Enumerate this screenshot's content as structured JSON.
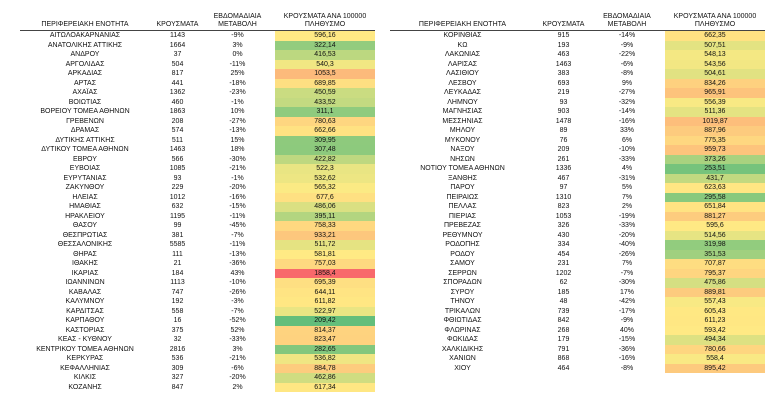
{
  "color_scale": [
    "#63be7b",
    "#ffeb84",
    "#f8696b"
  ],
  "tables": [
    {
      "headers": [
        "ΠΕΡΙΦΕΡΕΙΑΚΗ ΕΝΟΤΗΤΑ",
        "ΚΡΟΥΣΜΑΤΑ",
        "ΕΒΔΟΜΑΔΙΑΙΑ ΜΕΤΑΒΟΛΗ",
        "ΚΡΟΥΣΜΑΤΑ ΑΝΑ 100000 ΠΛΗΘΥΣΜΟ"
      ],
      "rows": [
        [
          "ΑΙΤΩΛΟΑΚΑΡΝΑΝΙΑΣ",
          "1143",
          "-9%",
          "596,16"
        ],
        [
          "ΑΝΑΤΟΛΙΚΗΣ ΑΤΤΙΚΗΣ",
          "1664",
          "3%",
          "322,14"
        ],
        [
          "ΑΝΔΡΟΥ",
          "37",
          "0%",
          "416,53"
        ],
        [
          "ΑΡΓΟΛΙΔΑΣ",
          "504",
          "-11%",
          "540,3"
        ],
        [
          "ΑΡΚΑΔΙΑΣ",
          "817",
          "25%",
          "1053,5"
        ],
        [
          "ΑΡΤΑΣ",
          "441",
          "-18%",
          "689,85"
        ],
        [
          "ΑΧΑΪΑΣ",
          "1362",
          "-23%",
          "450,59"
        ],
        [
          "ΒΟΙΩΤΙΑΣ",
          "460",
          "-1%",
          "433,52"
        ],
        [
          "ΒΟΡΕΙΟΥ ΤΟΜΕΑ ΑΘΗΝΩΝ",
          "1863",
          "10%",
          "311,1"
        ],
        [
          "ΓΡΕΒΕΝΩΝ",
          "208",
          "-27%",
          "780,63"
        ],
        [
          "ΔΡΑΜΑΣ",
          "574",
          "-13%",
          "662,66"
        ],
        [
          "ΔΥΤΙΚΗΣ ΑΤΤΙΚΗΣ",
          "511",
          "15%",
          "309,95"
        ],
        [
          "ΔΥΤΙΚΟΥ ΤΟΜΕΑ ΑΘΗΝΩΝ",
          "1463",
          "18%",
          "307,48"
        ],
        [
          "ΕΒΡΟΥ",
          "566",
          "-30%",
          "422,82"
        ],
        [
          "ΕΥΒΟΙΑΣ",
          "1085",
          "-21%",
          "522,3"
        ],
        [
          "ΕΥΡΥΤΑΝΙΑΣ",
          "93",
          "-1%",
          "532,62"
        ],
        [
          "ΖΑΚΥΝΘΟΥ",
          "229",
          "-20%",
          "565,32"
        ],
        [
          "ΗΛΕΙΑΣ",
          "1012",
          "-16%",
          "677,6"
        ],
        [
          "ΗΜΑΘΙΑΣ",
          "632",
          "-15%",
          "486,06"
        ],
        [
          "ΗΡΑΚΛΕΙΟΥ",
          "1195",
          "-11%",
          "395,11"
        ],
        [
          "ΘΑΣΟΥ",
          "99",
          "-45%",
          "758,33"
        ],
        [
          "ΘΕΣΠΡΩΤΙΑΣ",
          "381",
          "-7%",
          "933,21"
        ],
        [
          "ΘΕΣΣΑΛΟΝΙΚΗΣ",
          "5585",
          "-11%",
          "511,72"
        ],
        [
          "ΘΗΡΑΣ",
          "111",
          "-13%",
          "581,81"
        ],
        [
          "ΙΘΑΚΗΣ",
          "21",
          "-36%",
          "757,03"
        ],
        [
          "ΙΚΑΡΙΑΣ",
          "184",
          "43%",
          "1858,4"
        ],
        [
          "ΙΩΑΝΝΙΝΩΝ",
          "1113",
          "-10%",
          "695,39"
        ],
        [
          "ΚΑΒΑΛΑΣ",
          "747",
          "-26%",
          "644,11"
        ],
        [
          "ΚΑΛΥΜΝΟΥ",
          "192",
          "-3%",
          "611,82"
        ],
        [
          "ΚΑΡΔΙΤΣΑΣ",
          "558",
          "-7%",
          "522,97"
        ],
        [
          "ΚΑΡΠΑΘΟΥ",
          "16",
          "-52%",
          "209,42"
        ],
        [
          "ΚΑΣΤΟΡΙΑΣ",
          "375",
          "52%",
          "814,37"
        ],
        [
          "ΚΕΑΣ - ΚΥΘΝΟΥ",
          "32",
          "-33%",
          "823,47"
        ],
        [
          "ΚΕΝΤΡΙΚΟΥ ΤΟΜΕΑ ΑΘΗΝΩΝ",
          "2816",
          "3%",
          "282,65"
        ],
        [
          "ΚΕΡΚΥΡΑΣ",
          "536",
          "-21%",
          "536,82"
        ],
        [
          "ΚΕΦΑΛΛΗΝΙΑΣ",
          "309",
          "-6%",
          "884,78"
        ],
        [
          "ΚΙΛΚΙΣ",
          "327",
          "-20%",
          "462,86"
        ],
        [
          "ΚΟΖΑΝΗΣ",
          "847",
          "2%",
          "617,34"
        ]
      ]
    },
    {
      "headers": [
        "ΠΕΡΙΦΕΡΕΙΑΚΗ ΕΝΟΤΗΤΑ",
        "ΚΡΟΥΣΜΑΤΑ",
        "ΕΒΔΟΜΑΔΙΑΙΑ ΜΕΤΑΒΟΛΗ",
        "ΚΡΟΥΣΜΑΤΑ ΑΝΑ 100000 ΠΛΗΘΥΣΜΟ"
      ],
      "rows": [
        [
          "ΚΟΡΙΝΘΙΑΣ",
          "915",
          "-14%",
          "662,35"
        ],
        [
          "ΚΩ",
          "193",
          "-9%",
          "507,51"
        ],
        [
          "ΛΑΚΩΝΙΑΣ",
          "463",
          "-22%",
          "548,13"
        ],
        [
          "ΛΑΡΙΣΑΣ",
          "1463",
          "-6%",
          "543,56"
        ],
        [
          "ΛΑΣΙΘΙΟΥ",
          "383",
          "-8%",
          "504,61"
        ],
        [
          "ΛΕΣΒΟΥ",
          "693",
          "9%",
          "834,26"
        ],
        [
          "ΛΕΥΚΑΔΑΣ",
          "219",
          "-27%",
          "965,91"
        ],
        [
          "ΛΗΜΝΟΥ",
          "93",
          "-32%",
          "556,39"
        ],
        [
          "ΜΑΓΝΗΣΙΑΣ",
          "903",
          "-14%",
          "511,36"
        ],
        [
          "ΜΕΣΣΗΝΙΑΣ",
          "1478",
          "-16%",
          "1019,87"
        ],
        [
          "ΜΗΛΟΥ",
          "89",
          "33%",
          "887,96"
        ],
        [
          "ΜΥΚΟΝΟΥ",
          "76",
          "6%",
          "775,35"
        ],
        [
          "ΝΑΞΟΥ",
          "209",
          "-10%",
          "959,73"
        ],
        [
          "ΝΗΣΩΝ",
          "261",
          "-33%",
          "373,26"
        ],
        [
          "ΝΟΤΙΟΥ ΤΟΜΕΑ ΑΘΗΝΩΝ",
          "1336",
          "4%",
          "253,51"
        ],
        [
          "ΞΑΝΘΗΣ",
          "467",
          "-31%",
          "431,7"
        ],
        [
          "ΠΑΡΟΥ",
          "97",
          "5%",
          "623,63"
        ],
        [
          "ΠΕΙΡΑΙΩΣ",
          "1310",
          "7%",
          "295,58"
        ],
        [
          "ΠΕΛΛΑΣ",
          "823",
          "2%",
          "651,84"
        ],
        [
          "ΠΙΕΡΙΑΣ",
          "1053",
          "-19%",
          "881,27"
        ],
        [
          "ΠΡΕΒΕΖΑΣ",
          "326",
          "-33%",
          "595,6"
        ],
        [
          "ΡΕΘΥΜΝΟΥ",
          "430",
          "-20%",
          "514,56"
        ],
        [
          "ΡΟΔΟΠΗΣ",
          "334",
          "-40%",
          "319,98"
        ],
        [
          "ΡΟΔΟΥ",
          "454",
          "-26%",
          "351,53"
        ],
        [
          "ΣΑΜΟΥ",
          "231",
          "7%",
          "707,87"
        ],
        [
          "ΣΕΡΡΩΝ",
          "1202",
          "-7%",
          "795,37"
        ],
        [
          "ΣΠΟΡΑΔΩΝ",
          "62",
          "-30%",
          "475,86"
        ],
        [
          "ΣΥΡΟΥ",
          "185",
          "17%",
          "889,81"
        ],
        [
          "ΤΗΝΟΥ",
          "48",
          "-42%",
          "557,43"
        ],
        [
          "ΤΡΙΚΑΛΩΝ",
          "739",
          "-17%",
          "605,43"
        ],
        [
          "ΦΘΙΩΤΙΔΑΣ",
          "842",
          "-9%",
          "611,23"
        ],
        [
          "ΦΛΩΡΙΝΑΣ",
          "268",
          "40%",
          "593,42"
        ],
        [
          "ΦΩΚΙΔΑΣ",
          "179",
          "-15%",
          "494,34"
        ],
        [
          "ΧΑΛΚΙΔΙΚΗΣ",
          "791",
          "-36%",
          "780,66"
        ],
        [
          "ΧΑΝΙΩΝ",
          "868",
          "-16%",
          "558,4"
        ],
        [
          "ΧΙΟΥ",
          "464",
          "-8%",
          "895,42"
        ]
      ]
    }
  ]
}
